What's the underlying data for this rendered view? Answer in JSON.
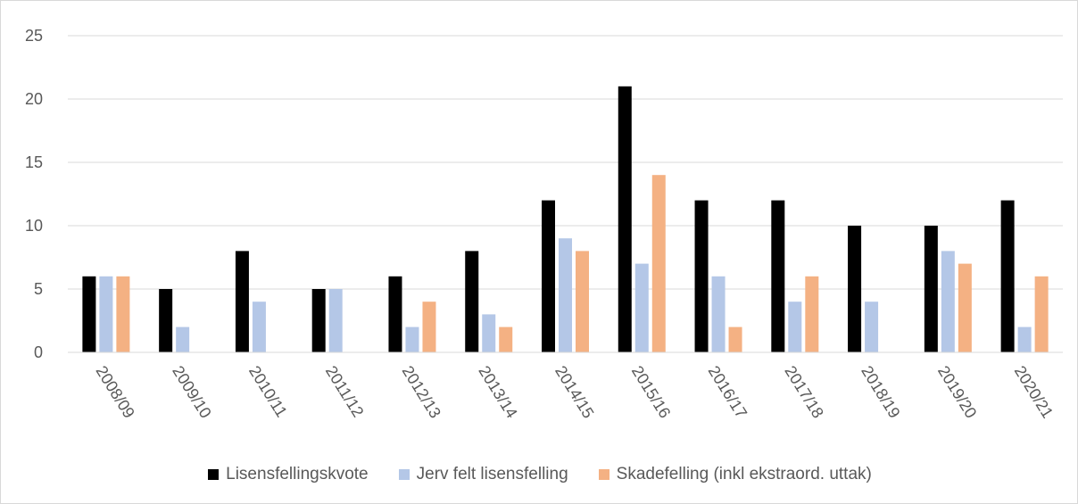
{
  "chart_data": {
    "type": "bar",
    "categories": [
      "2008/09",
      "2009/10",
      "2010/11",
      "2011/12",
      "2012/13",
      "2013/14",
      "2014/15",
      "2015/16",
      "2016/17",
      "2017/18",
      "2018/19",
      "2019/20",
      "2020/21"
    ],
    "series": [
      {
        "name": "Lisensfellingskvote",
        "color": "#000000",
        "values": [
          6,
          5,
          8,
          5,
          6,
          8,
          12,
          21,
          12,
          12,
          10,
          10,
          12
        ]
      },
      {
        "name": "Jerv felt lisensfelling",
        "color": "#b4c7e7",
        "values": [
          6,
          2,
          4,
          5,
          2,
          3,
          9,
          7,
          6,
          4,
          4,
          8,
          2
        ]
      },
      {
        "name": "Skadefelling (inkl ekstraord. uttak)",
        "color": "#f4b183",
        "values": [
          6,
          0,
          0,
          0,
          4,
          2,
          8,
          14,
          2,
          6,
          0,
          7,
          6
        ]
      }
    ],
    "ylim": [
      0,
      25
    ],
    "yticks": [
      0,
      5,
      10,
      15,
      20,
      25
    ],
    "grid": true,
    "legend_position": "bottom",
    "title": "",
    "xlabel": "",
    "ylabel": ""
  }
}
